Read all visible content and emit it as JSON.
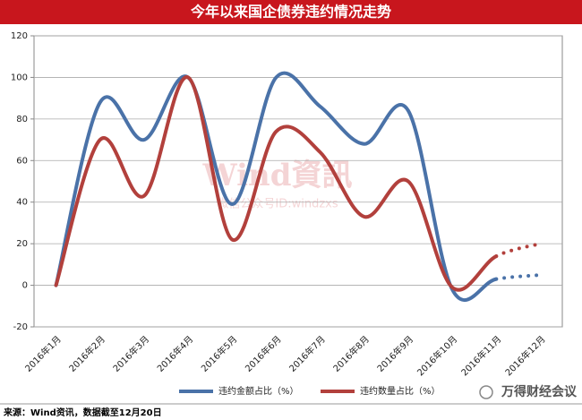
{
  "chart_data": {
    "type": "line",
    "title": "今年以来国企债券违约情况走势",
    "categories": [
      "2016年1月",
      "2016年2月",
      "2016年3月",
      "2016年4月",
      "2016年5月",
      "2016年6月",
      "2016年7月",
      "2016年8月",
      "2016年9月",
      "2016年10月",
      "2016年11月",
      "2016年12月"
    ],
    "series": [
      {
        "name": "违约金额占比（%）",
        "color": "#4a72a8",
        "values": [
          0,
          88,
          70,
          100,
          39,
          100,
          86,
          68,
          84,
          -2,
          3,
          5
        ]
      },
      {
        "name": "违约数量占比（%）",
        "color": "#b2403c",
        "values": [
          0,
          70,
          43,
          100,
          22,
          74,
          64,
          33,
          50,
          -1,
          14,
          20
        ]
      }
    ],
    "last_segment_style": "dotted",
    "smooth": true,
    "ylim": [
      -20,
      120
    ],
    "yticks": [
      -20,
      0,
      20,
      40,
      60,
      80,
      100,
      120
    ],
    "grid": true,
    "watermark": "Wind資訊",
    "watermark_sub": "微信公众号ID:windzxs",
    "source": "来源：Wind资讯，数据截至12月20日",
    "brand": "万得财经会议"
  }
}
